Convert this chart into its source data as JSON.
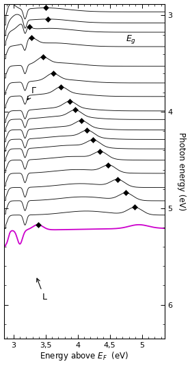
{
  "photon_energies": [
    3.1,
    3.21,
    3.31,
    3.45,
    3.65,
    3.82,
    3.96,
    4.11,
    4.2,
    4.31,
    4.41,
    4.51,
    4.63,
    4.77,
    4.92,
    5.06,
    5.21,
    5.39
  ],
  "xmin": 2.85,
  "xmax": 5.35,
  "ymin": 2.88,
  "ymax": 6.35,
  "xlabel": "Energy above $E_F$  (eV)",
  "ylabel": "Photon energy (eV)",
  "gamma_label": "Γ",
  "L_label": "L",
  "Eg_label": "$E_g$",
  "Eg_x": 4.75,
  "Eg_y": 3.25,
  "line_color": "#111111",
  "purple_color": "#cc00cc",
  "background_color": "white",
  "marker_color": "black",
  "curve_scale": 0.22,
  "yticks": [
    3,
    4,
    5,
    6
  ],
  "xticks": [
    3.0,
    3.5,
    4.0,
    4.5,
    5.0
  ],
  "xticklabels": [
    "3",
    "3,5",
    "4",
    "4,5",
    "5"
  ]
}
